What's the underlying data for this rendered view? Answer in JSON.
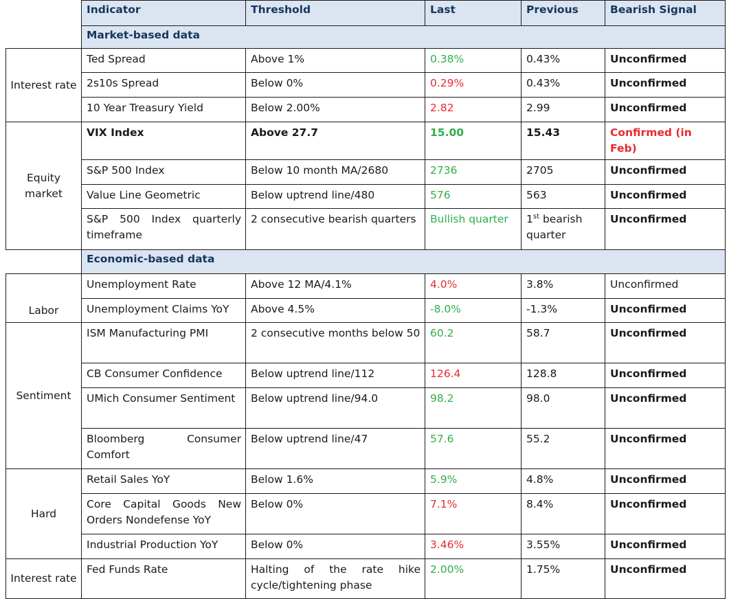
{
  "headers": [
    "Indicator",
    "Threshold",
    "Last",
    "Previous",
    "Bearish Signal"
  ],
  "sections": {
    "market": "Market-based data",
    "economic": "Economic-based data"
  },
  "categories": {
    "interest_rate": "Interest rate",
    "equity_market": "Equity market",
    "labor": "Labor",
    "sentiment": "Sentiment",
    "hard": "Hard",
    "interest_rate_2": "Interest rate"
  },
  "rows": [
    {
      "indicator": "Ted Spread",
      "threshold": "Above 1%",
      "last": "0.38%",
      "previous": "0.43%",
      "signal": "Unconfirmed"
    },
    {
      "indicator": "2s10s Spread",
      "threshold": "Below 0%",
      "last": "0.29%",
      "previous": "0.43%",
      "signal": "Unconfirmed"
    },
    {
      "indicator": "10 Year Treasury Yield",
      "threshold": "Below 2.00%",
      "last": "2.82",
      "previous": "2.99",
      "signal": "Unconfirmed"
    },
    {
      "indicator": "VIX Index",
      "threshold": "Above 27.7",
      "last": "15.00",
      "previous": "15.43",
      "signal": "Confirmed (in Feb)"
    },
    {
      "indicator": "S&P 500 Index",
      "threshold": "Below 10 month MA/2680",
      "last": "2736",
      "previous": "2705",
      "signal": "Unconfirmed"
    },
    {
      "indicator": "Value Line Geometric",
      "threshold": "Below uptrend line/480",
      "last": "576",
      "previous": "563",
      "signal": "Unconfirmed"
    },
    {
      "indicator": "S&P 500 Index quarterly timeframe",
      "threshold": "2 consecutive bearish quarters",
      "last": "Bullish quarter",
      "previous_num": "1",
      "previous_sup": "st",
      "previous_rest": " bearish quarter",
      "signal": "Unconfirmed"
    },
    {
      "indicator": "Unemployment Rate",
      "threshold": "Above 12 MA/4.1%",
      "last": "4.0%",
      "previous": "3.8%",
      "signal": "Unconfirmed"
    },
    {
      "indicator": "Unemployment Claims YoY",
      "threshold": "Above 4.5%",
      "last": "-8.0%",
      "previous": "-1.3%",
      "signal": "Unconfirmed"
    },
    {
      "indicator": "ISM Manufacturing PMI",
      "threshold": "2 consecutive months below 50",
      "last": "60.2",
      "previous": "58.7",
      "signal": "Unconfirmed"
    },
    {
      "indicator": "CB Consumer Confidence",
      "threshold": "Below uptrend line/112",
      "last": "126.4",
      "previous": "128.8",
      "signal": "Unconfirmed"
    },
    {
      "indicator": "UMich Consumer Sentiment",
      "threshold": "Below uptrend line/94.0",
      "last": "98.2",
      "previous": "98.0",
      "signal": "Unconfirmed"
    },
    {
      "indicator": "Bloomberg Consumer Comfort",
      "threshold": "Below uptrend line/47",
      "last": "57.6",
      "previous": "55.2",
      "signal": "Unconfirmed"
    },
    {
      "indicator": "Retail Sales YoY",
      "threshold": "Below 1.6%",
      "last": "5.9%",
      "previous": "4.8%",
      "signal": "Unconfirmed"
    },
    {
      "indicator": "Core Capital Goods New Orders Nondefense YoY",
      "threshold": "Below 0%",
      "last": "7.1%",
      "previous": "8.4%",
      "signal": "Unconfirmed"
    },
    {
      "indicator": "Industrial Production YoY",
      "threshold": "Below 0%",
      "last": "3.46%",
      "previous": "3.55%",
      "signal": "Unconfirmed"
    },
    {
      "indicator": "Fed Funds Rate",
      "threshold": "Halting of the rate hike cycle/tightening phase",
      "last": "2.00%",
      "previous": "1.75%",
      "signal": "Unconfirmed"
    }
  ],
  "colors": {
    "header_bg": "#dbe5f1",
    "header_text": "#17365d",
    "positive": "#2fae4a",
    "negative": "#e8292e"
  }
}
